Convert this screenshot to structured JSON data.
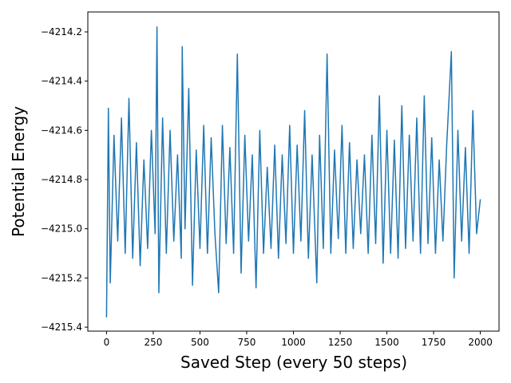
{
  "chart_data": {
    "type": "line",
    "x_label": "Saved Step (every 50 steps)",
    "y_label": "Potential Energy",
    "x": [
      0,
      10,
      20,
      40,
      60,
      80,
      100,
      120,
      140,
      160,
      180,
      200,
      220,
      240,
      260,
      270,
      280,
      300,
      320,
      340,
      360,
      380,
      400,
      405,
      420,
      440,
      460,
      480,
      500,
      520,
      540,
      560,
      580,
      600,
      620,
      640,
      660,
      680,
      700,
      720,
      740,
      760,
      780,
      800,
      820,
      840,
      860,
      880,
      900,
      920,
      940,
      960,
      980,
      1000,
      1020,
      1040,
      1060,
      1080,
      1100,
      1125,
      1140,
      1160,
      1180,
      1200,
      1220,
      1240,
      1260,
      1280,
      1300,
      1320,
      1340,
      1360,
      1380,
      1400,
      1420,
      1440,
      1460,
      1480,
      1500,
      1520,
      1540,
      1560,
      1580,
      1600,
      1620,
      1640,
      1660,
      1680,
      1700,
      1720,
      1740,
      1760,
      1780,
      1800,
      1820,
      1845,
      1860,
      1880,
      1900,
      1920,
      1940,
      1960,
      1980,
      2000
    ],
    "series": [
      {
        "color": "#1f77b4",
        "values": [
          -4215.36,
          -4214.51,
          -4215.22,
          -4214.62,
          -4215.05,
          -4214.55,
          -4215.1,
          -4214.47,
          -4215.12,
          -4214.65,
          -4215.15,
          -4214.72,
          -4215.08,
          -4214.6,
          -4215.02,
          -4214.18,
          -4215.26,
          -4214.55,
          -4215.1,
          -4214.6,
          -4215.05,
          -4214.7,
          -4215.12,
          -4214.26,
          -4215.0,
          -4214.43,
          -4215.23,
          -4214.68,
          -4215.08,
          -4214.58,
          -4215.1,
          -4214.63,
          -4215.02,
          -4215.26,
          -4214.58,
          -4215.06,
          -4214.67,
          -4215.1,
          -4214.29,
          -4215.18,
          -4214.62,
          -4215.05,
          -4214.7,
          -4215.24,
          -4214.6,
          -4215.1,
          -4214.75,
          -4215.08,
          -4214.66,
          -4215.12,
          -4214.7,
          -4215.06,
          -4214.58,
          -4215.1,
          -4214.66,
          -4215.05,
          -4214.52,
          -4215.12,
          -4214.7,
          -4215.22,
          -4214.62,
          -4215.08,
          -4214.29,
          -4215.1,
          -4214.68,
          -4215.04,
          -4214.58,
          -4215.1,
          -4214.65,
          -4215.08,
          -4214.72,
          -4215.02,
          -4214.7,
          -4215.1,
          -4214.62,
          -4215.06,
          -4214.46,
          -4215.14,
          -4214.6,
          -4215.1,
          -4214.64,
          -4215.12,
          -4214.5,
          -4215.08,
          -4214.62,
          -4215.05,
          -4214.55,
          -4215.1,
          -4214.46,
          -4215.06,
          -4214.63,
          -4215.1,
          -4214.72,
          -4215.05,
          -4214.66,
          -4214.28,
          -4215.2,
          -4214.6,
          -4215.05,
          -4214.67,
          -4215.1,
          -4214.52,
          -4215.02,
          -4214.88
        ]
      }
    ],
    "xlim": [
      -100,
      2100
    ],
    "xticks": [
      0,
      250,
      500,
      750,
      1000,
      1250,
      1500,
      1750,
      2000
    ],
    "ylim": [
      -4215.416,
      -4214.119
    ],
    "yticks": [
      {
        "value": -4215.4,
        "label": "−4215.4"
      },
      {
        "value": -4215.2,
        "label": "−4215.2"
      },
      {
        "value": -4215.0,
        "label": "−4215.0"
      },
      {
        "value": -4214.8,
        "label": "−4214.8"
      },
      {
        "value": -4214.6,
        "label": "−4214.6"
      },
      {
        "value": -4214.4,
        "label": "−4214.4"
      },
      {
        "value": -4214.2,
        "label": "−4214.2"
      }
    ],
    "grid": false
  }
}
